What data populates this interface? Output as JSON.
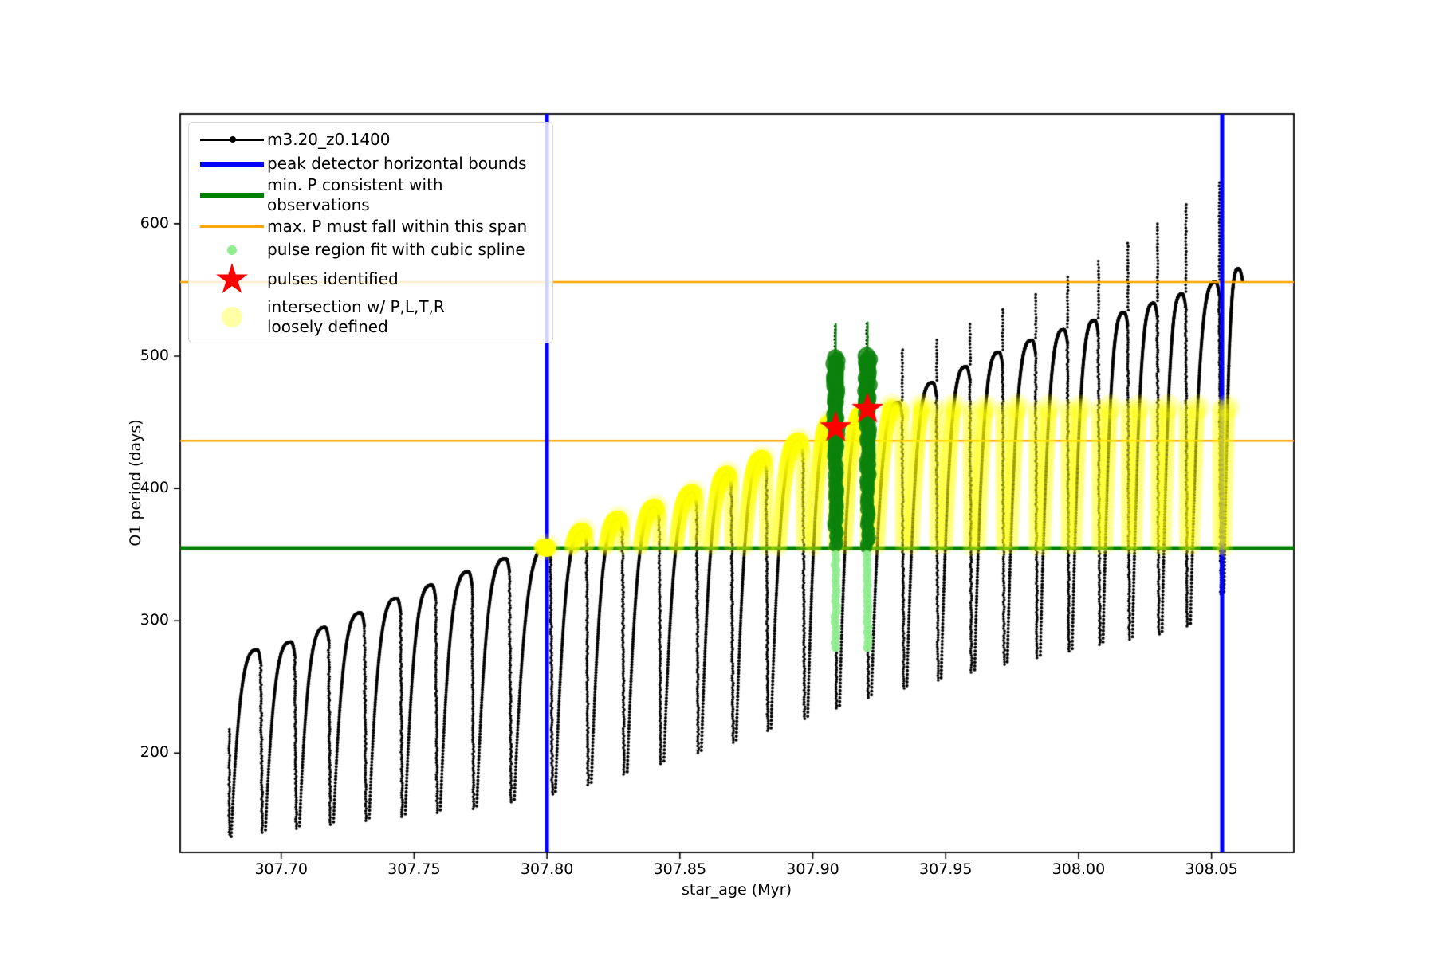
{
  "legend": {
    "items": [
      {
        "label": "m3.20_z0.1400",
        "marker": "line-dot",
        "color": "#000000"
      },
      {
        "label": "peak detector horizontal bounds",
        "marker": "thick-line",
        "color": "#0000ff"
      },
      {
        "label": "min. P consistent with observations",
        "marker": "thick-line",
        "color": "#008000"
      },
      {
        "label": "max. P must fall within this span",
        "marker": "line",
        "color": "#ffa500"
      },
      {
        "label": "pulse region fit with cubic spline",
        "marker": "dot-small",
        "color": "#90ee90"
      },
      {
        "label": "pulses identified",
        "marker": "star",
        "color": "#ff0000"
      },
      {
        "label": "intersection w/ P,L,T,R\nloosely defined",
        "marker": "dot-large",
        "color": "#ffff00"
      }
    ]
  },
  "chart_data": {
    "type": "line",
    "title": "",
    "xlabel": "star_age (Myr)",
    "ylabel": "O1 period (days)",
    "xlim": [
      307.662,
      308.081
    ],
    "ylim": [
      125,
      683
    ],
    "grid": false,
    "legend_position": "upper left",
    "xticks": [
      {
        "label": "307.70",
        "value": 307.7
      },
      {
        "label": "307.75",
        "value": 307.75
      },
      {
        "label": "307.80",
        "value": 307.8
      },
      {
        "label": "307.85",
        "value": 307.85
      },
      {
        "label": "307.90",
        "value": 307.9
      },
      {
        "label": "307.95",
        "value": 307.95
      },
      {
        "label": "308.00",
        "value": 308.0
      },
      {
        "label": "308.05",
        "value": 308.05
      }
    ],
    "yticks": [
      {
        "label": "200",
        "value": 200
      },
      {
        "label": "300",
        "value": 300
      },
      {
        "label": "400",
        "value": 400
      },
      {
        "label": "500",
        "value": 500
      },
      {
        "label": "600",
        "value": 600
      }
    ],
    "series": [
      {
        "name": "m3.20_z0.1400",
        "color": "#000000",
        "style": "line+markers"
      }
    ],
    "peak_detector_bounds": {
      "color": "#0000ff",
      "ages": [
        307.8,
        308.054
      ]
    },
    "min_P_line": {
      "color": "#008000",
      "period": 355
    },
    "max_P_span": {
      "color": "#ffa500",
      "periods": [
        436,
        556
      ]
    },
    "yellow_region": {
      "color": "#ffff00",
      "halo_color": "#ffff99",
      "period_min": 355,
      "period_max": 462,
      "age_min": 307.797,
      "age_max": 308.0565,
      "seed_point": {
        "age": 307.8,
        "period": 355
      }
    },
    "spline_regions": [
      {
        "age": 307.9086,
        "line_top": 525,
        "dense_top": 499,
        "dense_bottom": 355,
        "faint_top": 350,
        "faint_bottom": 277,
        "color": "#0c830c",
        "faint_color": "#90ee90"
      },
      {
        "age": 307.9206,
        "line_top": 526,
        "dense_top": 500,
        "dense_bottom": 355,
        "faint_top": 350,
        "faint_bottom": 277,
        "color": "#0c830c",
        "faint_color": "#90ee90"
      }
    ],
    "pulses_identified": [
      {
        "age": 307.9086,
        "period": 446
      },
      {
        "age": 307.9206,
        "period": 460
      }
    ],
    "star_color": "#ff0000",
    "lead_in": {
      "age": 307.6805,
      "top": 218,
      "bottom": 137
    },
    "final_hook_end": {
      "age": 308.0617,
      "period": 557
    },
    "pulse_cycles": [
      {
        "peak_age": 307.691,
        "arch": 278,
        "spike_top": null,
        "valley_after": 140
      },
      {
        "peak_age": 307.7038,
        "arch": 284,
        "spike_top": null,
        "valley_after": 143
      },
      {
        "peak_age": 307.7166,
        "arch": 295,
        "spike_top": null,
        "valley_after": 146
      },
      {
        "peak_age": 307.73,
        "arch": 306,
        "spike_top": null,
        "valley_after": 149
      },
      {
        "peak_age": 307.7436,
        "arch": 317,
        "spike_top": null,
        "valley_after": 152
      },
      {
        "peak_age": 307.7568,
        "arch": 327,
        "spike_top": null,
        "valley_after": 155
      },
      {
        "peak_age": 307.7705,
        "arch": 337,
        "spike_top": null,
        "valley_after": 158
      },
      {
        "peak_age": 307.7846,
        "arch": 347,
        "spike_top": null,
        "valley_after": 163
      },
      {
        "peak_age": 307.8001,
        "arch": 356,
        "spike_top": null,
        "valley_after": 169
      },
      {
        "peak_age": 307.8136,
        "arch": 368,
        "spike_top": null,
        "valley_after": 176
      },
      {
        "peak_age": 307.8271,
        "arch": 377,
        "spike_top": null,
        "valley_after": 184
      },
      {
        "peak_age": 307.8409,
        "arch": 386,
        "spike_top": null,
        "valley_after": 192
      },
      {
        "peak_age": 307.855,
        "arch": 397,
        "spike_top": null,
        "valley_after": 200
      },
      {
        "peak_age": 307.8681,
        "arch": 411,
        "spike_top": null,
        "valley_after": 208
      },
      {
        "peak_age": 307.8812,
        "arch": 423,
        "spike_top": null,
        "valley_after": 217
      },
      {
        "peak_age": 307.895,
        "arch": 436,
        "spike_top": null,
        "valley_after": 226
      },
      {
        "peak_age": 307.907,
        "arch": 450,
        "spike_top": 525,
        "valley_after": 234
      },
      {
        "peak_age": 307.919,
        "arch": 457,
        "spike_top": 526,
        "valley_after": 242
      },
      {
        "peak_age": 307.9323,
        "arch": 465,
        "spike_top": 505,
        "valley_after": 249
      },
      {
        "peak_age": 307.9452,
        "arch": 480,
        "spike_top": 514,
        "valley_after": 255
      },
      {
        "peak_age": 307.9578,
        "arch": 492,
        "spike_top": 525,
        "valley_after": 261
      },
      {
        "peak_age": 307.9701,
        "arch": 503,
        "spike_top": 537,
        "valley_after": 267
      },
      {
        "peak_age": 307.9825,
        "arch": 512,
        "spike_top": 549,
        "valley_after": 272
      },
      {
        "peak_age": 307.9945,
        "arch": 520,
        "spike_top": 561,
        "valley_after": 277
      },
      {
        "peak_age": 308.0061,
        "arch": 527,
        "spike_top": 573,
        "valley_after": 282
      },
      {
        "peak_age": 308.0172,
        "arch": 533,
        "spike_top": 586,
        "valley_after": 286
      },
      {
        "peak_age": 308.0283,
        "arch": 540,
        "spike_top": 600,
        "valley_after": 290
      },
      {
        "peak_age": 308.039,
        "arch": 547,
        "spike_top": 615,
        "valley_after": 296
      },
      {
        "peak_age": 308.0516,
        "arch": 556,
        "spike_top": 632,
        "valley_after": 320
      },
      {
        "peak_age": 308.0602,
        "arch": 566,
        "spike_top": null,
        "valley_after": null,
        "hook": true
      }
    ]
  }
}
